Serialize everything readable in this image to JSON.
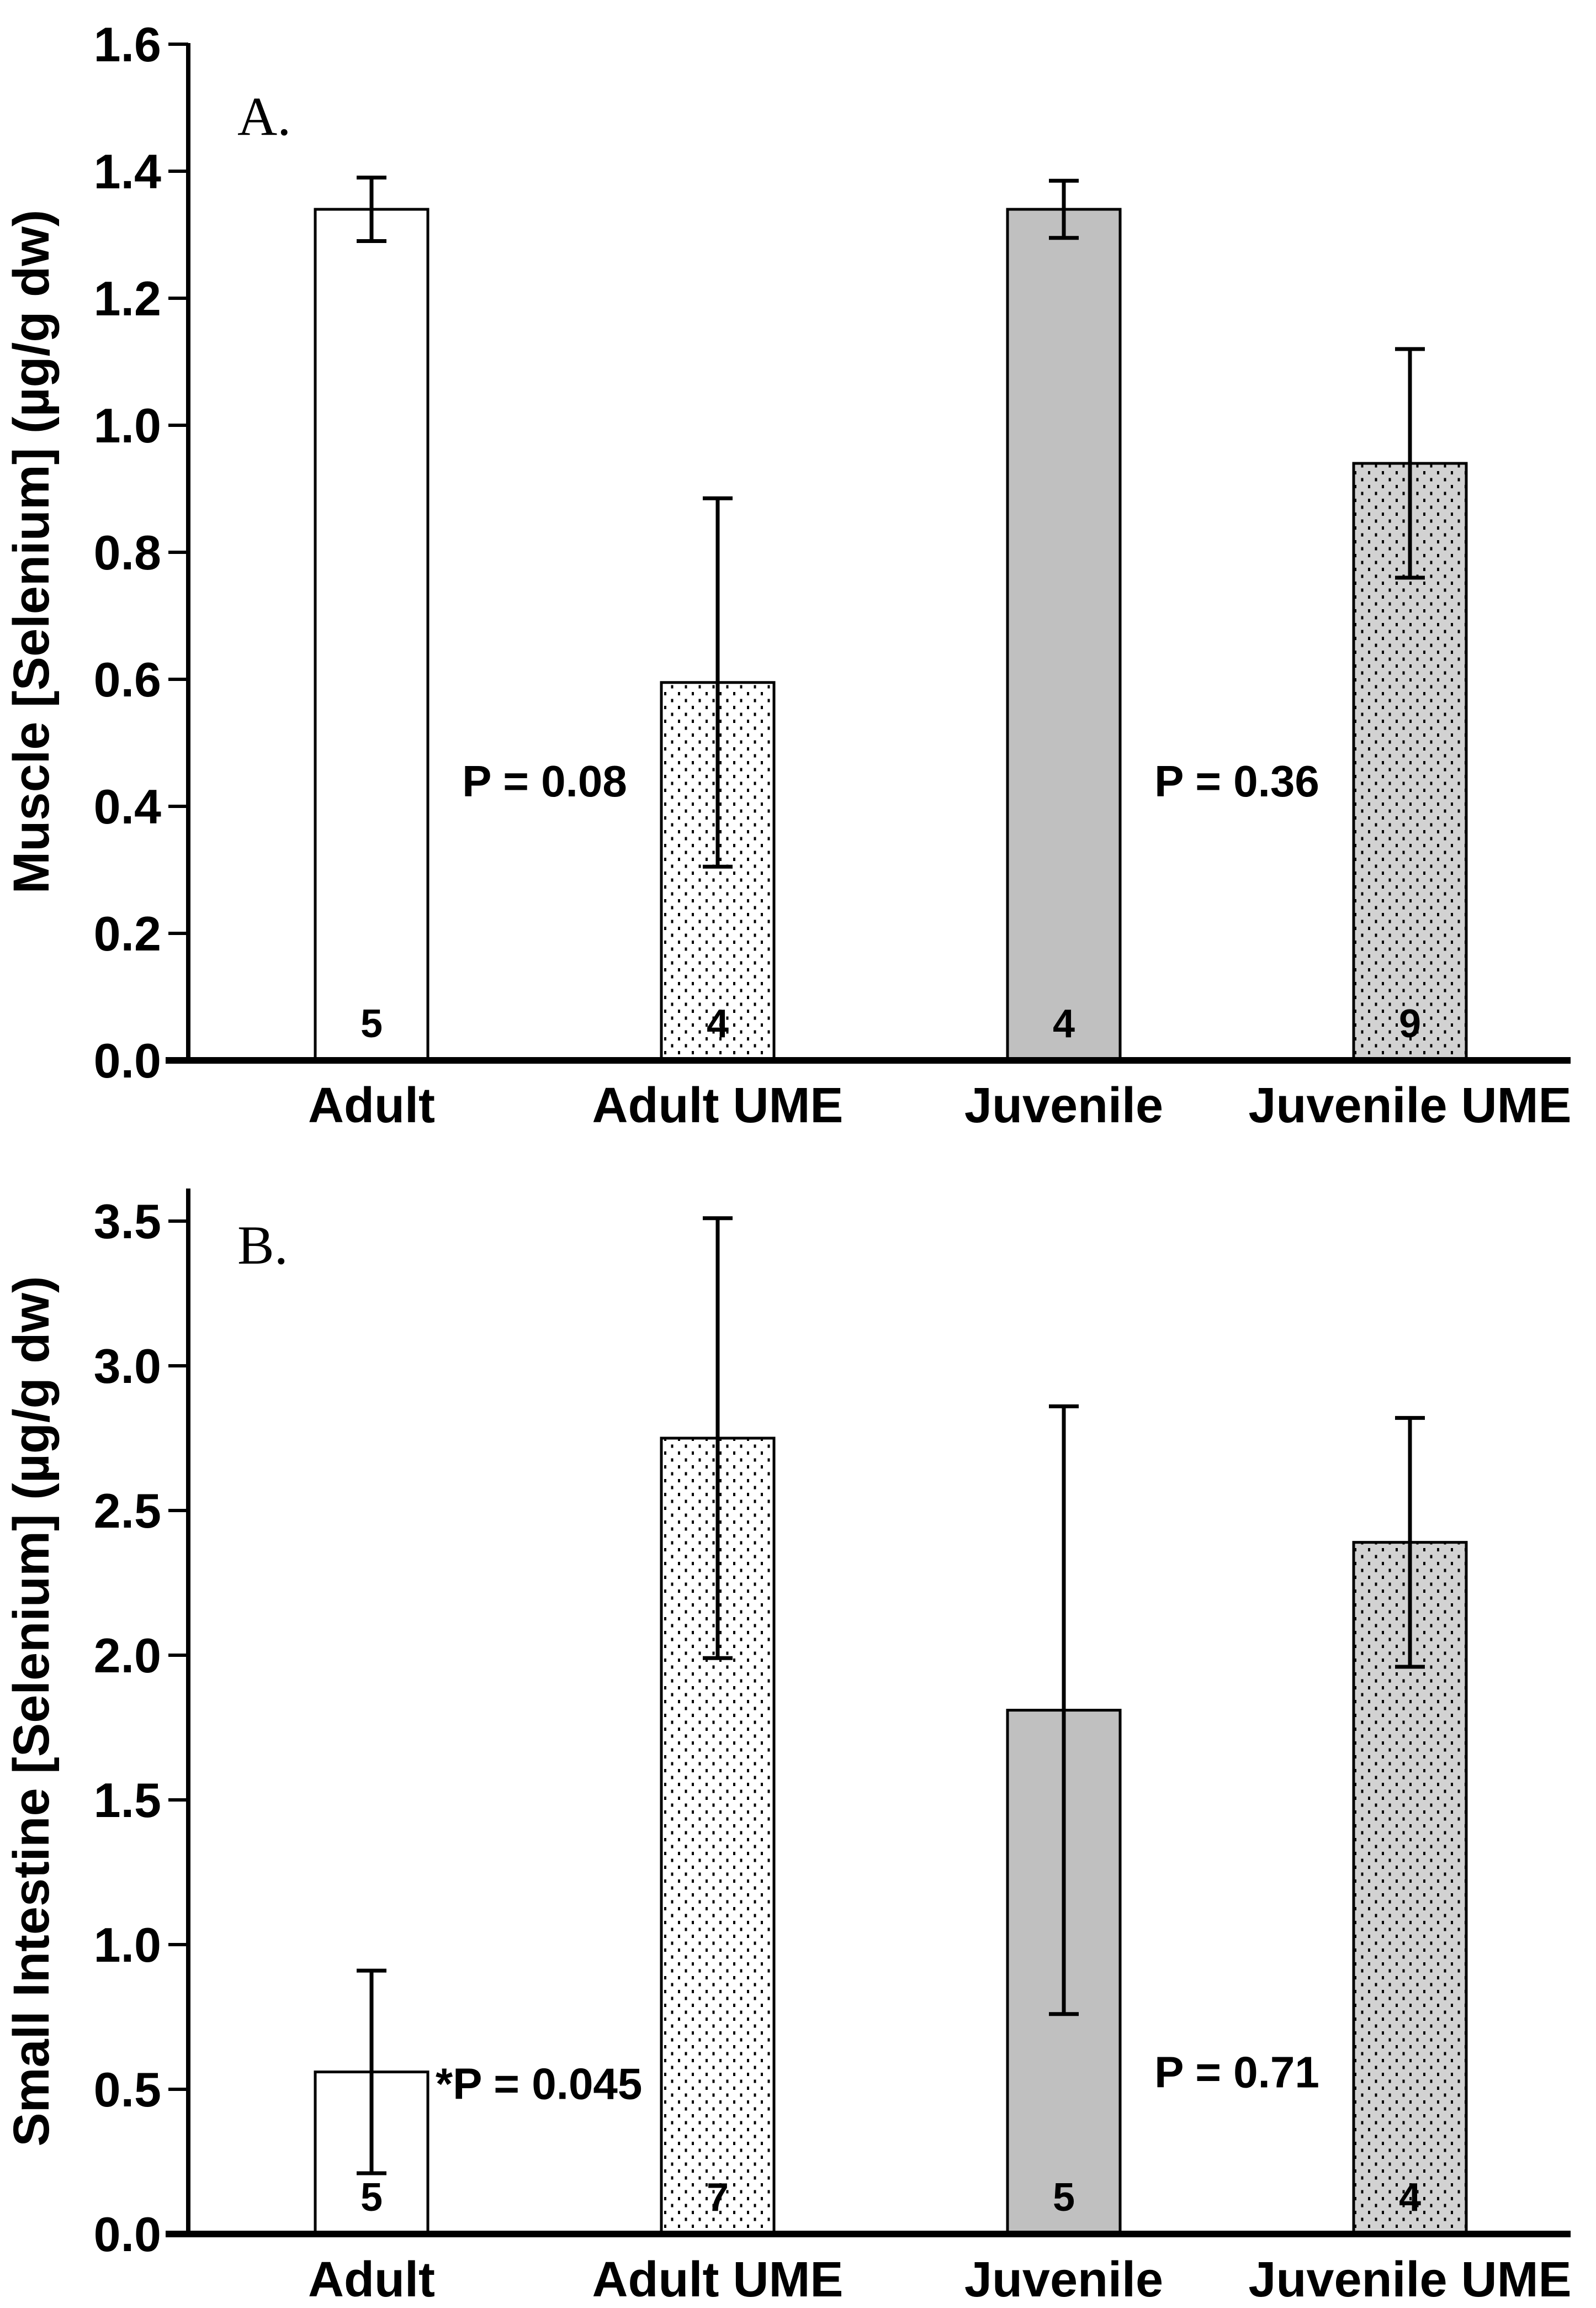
{
  "chart_data": [
    {
      "type": "bar",
      "panel_label": "A.",
      "title": "",
      "xlabel": "",
      "ylabel": "Muscle [Selenium] (µg/g dw)",
      "categories": [
        "Adult",
        "Adult UME",
        "Juvenile",
        "Juvenile UME"
      ],
      "values": [
        1.34,
        0.595,
        1.34,
        0.94
      ],
      "errors": [
        0.05,
        0.29,
        0.045,
        0.18
      ],
      "n_labels": [
        "5",
        "4",
        "4",
        "9"
      ],
      "ylim": [
        0.0,
        1.6
      ],
      "ytick_step": 0.2,
      "ytick_labels": [
        "0.0",
        "0.2",
        "0.4",
        "0.6",
        "0.8",
        "1.0",
        "1.2",
        "1.4",
        "1.6"
      ],
      "bar_styles": [
        "white",
        "stipple-white",
        "gray",
        "stipple-gray"
      ],
      "grid": false,
      "legend": "none",
      "annotations": [
        {
          "text": "P = 0.08",
          "placement": "between",
          "bars": [
            0,
            1
          ],
          "y_value": 0.44
        },
        {
          "text": "P = 0.36",
          "placement": "between",
          "bars": [
            2,
            3
          ],
          "y_value": 0.44
        }
      ]
    },
    {
      "type": "bar",
      "panel_label": "B.",
      "title": "",
      "xlabel": "",
      "ylabel": "Small Intestine [Selenium] (µg/g dw)",
      "categories": [
        "Adult",
        "Adult UME",
        "Juvenile",
        "Juvenile UME"
      ],
      "values": [
        0.56,
        2.75,
        1.81,
        2.39
      ],
      "errors": [
        0.35,
        0.76,
        1.05,
        0.43
      ],
      "n_labels": [
        "5",
        "7",
        "5",
        "4"
      ],
      "ylim": [
        0.0,
        3.5
      ],
      "ytick_step": 0.5,
      "ytick_labels": [
        "0.0",
        "0.5",
        "1.0",
        "1.5",
        "2.0",
        "2.5",
        "3.0",
        "3.5"
      ],
      "bar_styles": [
        "white",
        "stipple-white",
        "gray",
        "stipple-gray"
      ],
      "grid": false,
      "legend": "none",
      "annotations": [
        {
          "text": "*P = 0.045",
          "placement": "right_of_bar",
          "bars": [
            0
          ],
          "y_value": 0.52
        },
        {
          "text": "P = 0.71",
          "placement": "between",
          "bars": [
            2,
            3
          ],
          "y_value": 0.56
        }
      ]
    }
  ],
  "colors": {
    "background": "#ffffff",
    "ink": "#000000",
    "bar_white": "#ffffff",
    "bar_gray": "#c0c0c0",
    "stipple_white_bg": "#ffffff",
    "stipple_gray_bg": "#d2d2d2",
    "stipple_dot": "#000000"
  }
}
